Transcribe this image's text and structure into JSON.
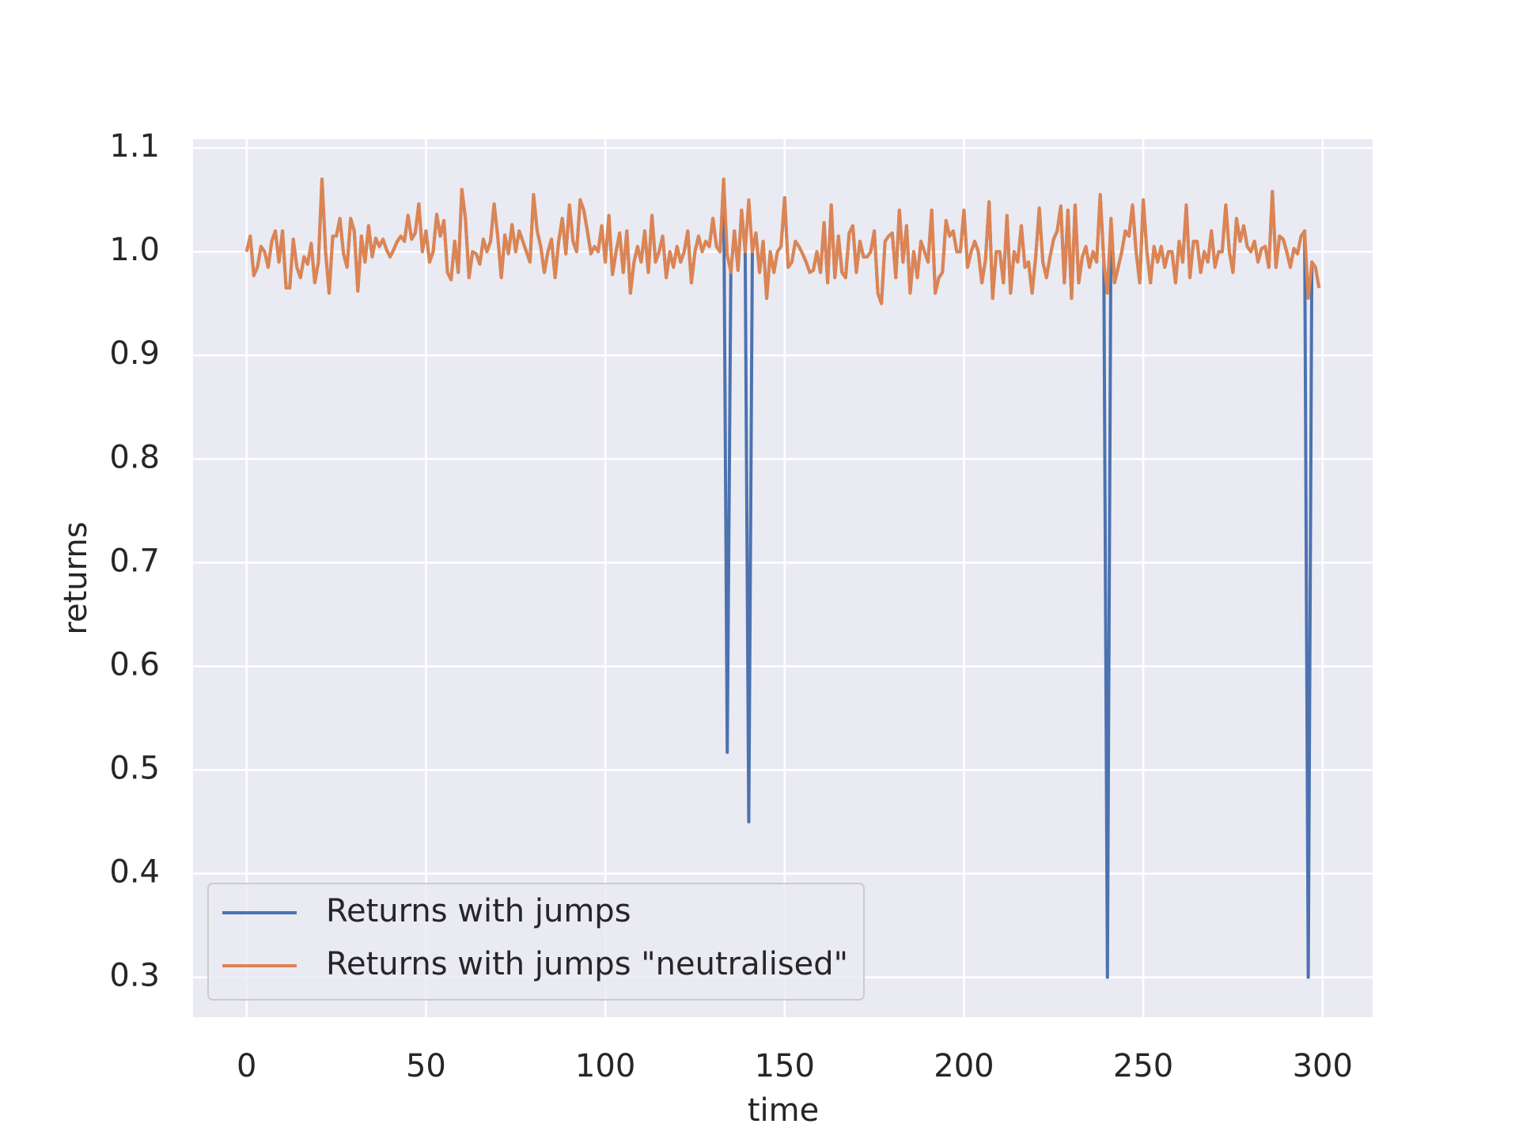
{
  "chart_data": {
    "type": "line",
    "x": [
      0,
      1,
      2,
      3,
      4,
      5,
      6,
      7,
      8,
      9,
      10,
      11,
      12,
      13,
      14,
      15,
      16,
      17,
      18,
      19,
      20,
      21,
      22,
      23,
      24,
      25,
      26,
      27,
      28,
      29,
      30,
      31,
      32,
      33,
      34,
      35,
      36,
      37,
      38,
      39,
      40,
      41,
      42,
      43,
      44,
      45,
      46,
      47,
      48,
      49,
      50,
      51,
      52,
      53,
      54,
      55,
      56,
      57,
      58,
      59,
      60,
      61,
      62,
      63,
      64,
      65,
      66,
      67,
      68,
      69,
      70,
      71,
      72,
      73,
      74,
      75,
      76,
      77,
      78,
      79,
      80,
      81,
      82,
      83,
      84,
      85,
      86,
      87,
      88,
      89,
      90,
      91,
      92,
      93,
      94,
      95,
      96,
      97,
      98,
      99,
      100,
      101,
      102,
      103,
      104,
      105,
      106,
      107,
      108,
      109,
      110,
      111,
      112,
      113,
      114,
      115,
      116,
      117,
      118,
      119,
      120,
      121,
      122,
      123,
      124,
      125,
      126,
      127,
      128,
      129,
      130,
      131,
      132,
      133,
      134,
      135,
      136,
      137,
      138,
      139,
      140,
      141,
      142,
      143,
      144,
      145,
      146,
      147,
      148,
      149,
      150,
      151,
      152,
      153,
      154,
      155,
      156,
      157,
      158,
      159,
      160,
      161,
      162,
      163,
      164,
      165,
      166,
      167,
      168,
      169,
      170,
      171,
      172,
      173,
      174,
      175,
      176,
      177,
      178,
      179,
      180,
      181,
      182,
      183,
      184,
      185,
      186,
      187,
      188,
      189,
      190,
      191,
      192,
      193,
      194,
      195,
      196,
      197,
      198,
      199,
      200,
      201,
      202,
      203,
      204,
      205,
      206,
      207,
      208,
      209,
      210,
      211,
      212,
      213,
      214,
      215,
      216,
      217,
      218,
      219,
      220,
      221,
      222,
      223,
      224,
      225,
      226,
      227,
      228,
      229,
      230,
      231,
      232,
      233,
      234,
      235,
      236,
      237,
      238,
      239,
      240,
      241,
      242,
      243,
      244,
      245,
      246,
      247,
      248,
      249,
      250,
      251,
      252,
      253,
      254,
      255,
      256,
      257,
      258,
      259,
      260,
      261,
      262,
      263,
      264,
      265,
      266,
      267,
      268,
      269,
      270,
      271,
      272,
      273,
      274,
      275,
      276,
      277,
      278,
      279,
      280,
      281,
      282,
      283,
      284,
      285,
      286,
      287,
      288,
      289,
      290,
      291,
      292,
      293,
      294,
      295,
      296,
      297,
      298,
      299
    ],
    "series": [
      {
        "name": "Returns with jumps",
        "color": "#4c72b0",
        "values": [
          1.0,
          1.015,
          0.977,
          0.985,
          1.005,
          1.0,
          0.985,
          1.01,
          1.02,
          0.99,
          1.02,
          0.965,
          0.965,
          1.012,
          0.985,
          0.975,
          0.995,
          0.988,
          1.008,
          0.97,
          0.99,
          1.07,
          1.0,
          0.96,
          1.015,
          1.015,
          1.032,
          0.998,
          0.985,
          1.032,
          1.02,
          0.962,
          1.015,
          0.99,
          1.025,
          0.995,
          1.013,
          1.005,
          1.012,
          1.002,
          0.995,
          1.002,
          1.01,
          1.015,
          1.01,
          1.035,
          1.012,
          1.018,
          1.046,
          1.0,
          1.02,
          0.99,
          1.0,
          1.036,
          1.015,
          1.03,
          0.98,
          0.973,
          1.01,
          0.98,
          1.06,
          1.032,
          0.975,
          1.0,
          0.998,
          0.988,
          1.012,
          1.0,
          1.01,
          1.046,
          1.015,
          0.975,
          1.016,
          0.998,
          1.026,
          1.0,
          1.02,
          1.01,
          1.0,
          0.99,
          1.055,
          1.02,
          1.005,
          0.98,
          1.0,
          1.012,
          0.975,
          1.01,
          1.032,
          0.998,
          1.045,
          1.01,
          1.0,
          1.05,
          1.04,
          1.02,
          0.998,
          1.005,
          1.0,
          1.025,
          0.99,
          1.035,
          0.978,
          1.0,
          1.018,
          0.98,
          1.02,
          0.96,
          0.99,
          1.005,
          0.99,
          1.02,
          0.98,
          1.035,
          0.99,
          1.0,
          1.015,
          0.975,
          1.0,
          0.985,
          1.005,
          0.99,
          1.0,
          1.02,
          0.97,
          1.0,
          1.015,
          1.0,
          1.01,
          1.005,
          1.032,
          1.005,
          1.0,
          1.07,
          0.517,
          0.98,
          1.02,
          0.982,
          1.04,
          1.0,
          0.45,
          1.0,
          1.018,
          0.98,
          1.01,
          0.955,
          1.0,
          0.98,
          1.0,
          1.005,
          1.052,
          0.985,
          0.99,
          1.01,
          1.005,
          0.998,
          0.99,
          0.98,
          0.982,
          1.0,
          0.98,
          1.028,
          0.97,
          1.045,
          0.975,
          1.015,
          0.98,
          0.975,
          1.018,
          1.025,
          0.98,
          1.01,
          0.995,
          0.995,
          1.0,
          1.02,
          0.96,
          0.95,
          1.01,
          1.015,
          1.018,
          0.975,
          1.04,
          0.99,
          1.025,
          0.96,
          1.0,
          0.975,
          1.01,
          1.0,
          0.99,
          1.04,
          0.96,
          0.975,
          0.98,
          1.03,
          1.015,
          1.02,
          1.0,
          1.0,
          1.04,
          0.985,
          1.0,
          1.01,
          1.0,
          0.97,
          0.992,
          1.048,
          0.955,
          1.0,
          1.0,
          0.97,
          1.035,
          0.96,
          1.0,
          0.99,
          1.025,
          0.985,
          0.99,
          0.96,
          0.995,
          1.042,
          0.99,
          0.975,
          0.995,
          1.012,
          1.02,
          1.044,
          0.97,
          1.04,
          0.955,
          1.045,
          0.97,
          0.995,
          1.005,
          0.985,
          1.0,
          0.99,
          1.055,
          0.99,
          0.3,
          1.032,
          0.97,
          0.985,
          1.0,
          1.02,
          1.015,
          1.045,
          1.0,
          0.97,
          1.05,
          1.0,
          0.97,
          1.005,
          0.99,
          1.005,
          0.985,
          1.0,
          1.0,
          0.97,
          1.01,
          0.99,
          1.045,
          0.975,
          1.01,
          1.01,
          0.98,
          1.0,
          0.99,
          1.02,
          0.985,
          1.0,
          1.0,
          1.045,
          1.0,
          0.98,
          1.032,
          1.01,
          1.025,
          1.005,
          1.0,
          1.01,
          0.99,
          1.003,
          1.005,
          0.985,
          1.058,
          0.985,
          1.015,
          1.012,
          1.0,
          0.985,
          1.003,
          0.998,
          1.015,
          1.02,
          0.3,
          0.99,
          0.985,
          0.965
        ]
      },
      {
        "name": "Returns with jumps \"neutralised\"",
        "color": "#dd8452",
        "values": [
          1.0,
          1.015,
          0.977,
          0.985,
          1.005,
          1.0,
          0.985,
          1.01,
          1.02,
          0.99,
          1.02,
          0.965,
          0.965,
          1.012,
          0.985,
          0.975,
          0.995,
          0.988,
          1.008,
          0.97,
          0.99,
          1.07,
          1.0,
          0.96,
          1.015,
          1.015,
          1.032,
          0.998,
          0.985,
          1.032,
          1.02,
          0.962,
          1.015,
          0.99,
          1.025,
          0.995,
          1.013,
          1.005,
          1.012,
          1.002,
          0.995,
          1.002,
          1.01,
          1.015,
          1.01,
          1.035,
          1.012,
          1.018,
          1.046,
          1.0,
          1.02,
          0.99,
          1.0,
          1.036,
          1.015,
          1.03,
          0.98,
          0.973,
          1.01,
          0.98,
          1.06,
          1.032,
          0.975,
          1.0,
          0.998,
          0.988,
          1.012,
          1.0,
          1.01,
          1.046,
          1.015,
          0.975,
          1.016,
          0.998,
          1.026,
          1.0,
          1.02,
          1.01,
          1.0,
          0.99,
          1.055,
          1.02,
          1.005,
          0.98,
          1.0,
          1.012,
          0.975,
          1.01,
          1.032,
          0.998,
          1.045,
          1.01,
          1.0,
          1.05,
          1.04,
          1.02,
          0.998,
          1.005,
          1.0,
          1.025,
          0.99,
          1.035,
          0.978,
          1.0,
          1.018,
          0.98,
          1.02,
          0.96,
          0.99,
          1.005,
          0.99,
          1.02,
          0.98,
          1.035,
          0.99,
          1.0,
          1.015,
          0.975,
          1.0,
          0.985,
          1.005,
          0.99,
          1.0,
          1.02,
          0.97,
          1.0,
          1.015,
          1.0,
          1.01,
          1.005,
          1.032,
          1.005,
          1.0,
          1.07,
          0.997,
          0.98,
          1.02,
          0.982,
          1.04,
          1.0,
          1.05,
          1.0,
          1.018,
          0.98,
          1.01,
          0.955,
          1.0,
          0.98,
          1.0,
          1.005,
          1.052,
          0.985,
          0.99,
          1.01,
          1.005,
          0.998,
          0.99,
          0.98,
          0.982,
          1.0,
          0.98,
          1.028,
          0.97,
          1.045,
          0.975,
          1.015,
          0.98,
          0.975,
          1.018,
          1.025,
          0.98,
          1.01,
          0.995,
          0.995,
          1.0,
          1.02,
          0.96,
          0.95,
          1.01,
          1.015,
          1.018,
          0.975,
          1.04,
          0.99,
          1.025,
          0.96,
          1.0,
          0.975,
          1.01,
          1.0,
          0.99,
          1.04,
          0.96,
          0.975,
          0.98,
          1.03,
          1.015,
          1.02,
          1.0,
          1.0,
          1.04,
          0.985,
          1.0,
          1.01,
          1.0,
          0.97,
          0.992,
          1.048,
          0.955,
          1.0,
          1.0,
          0.97,
          1.035,
          0.96,
          1.0,
          0.99,
          1.025,
          0.985,
          0.99,
          0.96,
          0.995,
          1.042,
          0.99,
          0.975,
          0.995,
          1.012,
          1.02,
          1.044,
          0.97,
          1.04,
          0.955,
          1.045,
          0.97,
          0.995,
          1.005,
          0.985,
          1.0,
          0.99,
          1.055,
          0.99,
          0.96,
          1.032,
          0.97,
          0.985,
          1.0,
          1.02,
          1.015,
          1.045,
          1.0,
          0.97,
          1.05,
          1.0,
          0.97,
          1.005,
          0.99,
          1.005,
          0.985,
          1.0,
          1.0,
          0.97,
          1.01,
          0.99,
          1.045,
          0.975,
          1.01,
          1.01,
          0.98,
          1.0,
          0.99,
          1.02,
          0.985,
          1.0,
          1.0,
          1.045,
          1.0,
          0.98,
          1.032,
          1.01,
          1.025,
          1.005,
          1.0,
          1.01,
          0.99,
          1.003,
          1.005,
          0.985,
          1.058,
          0.985,
          1.015,
          1.012,
          1.0,
          0.985,
          1.003,
          0.998,
          1.015,
          1.02,
          0.955,
          0.99,
          0.985,
          0.965
        ]
      }
    ],
    "x_label": "time",
    "y_label": "returns",
    "xlim": [
      -14.95,
      313.95
    ],
    "xticks": [
      0,
      50,
      100,
      150,
      200,
      250,
      300
    ],
    "ylim": [
      0.2615,
      1.1085
    ],
    "yticks": [
      0.3,
      0.4,
      0.5,
      0.6,
      0.7,
      0.8,
      0.9,
      {
        "value": 1,
        "label": "1.0"
      },
      1.1
    ],
    "grid": true,
    "legend": "lower left"
  }
}
